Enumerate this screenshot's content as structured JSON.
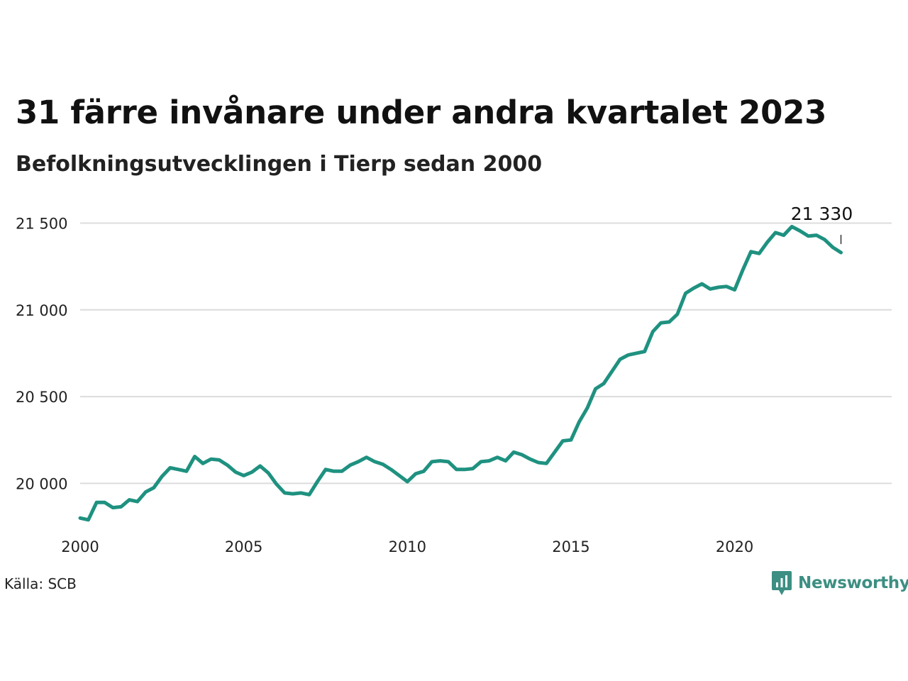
{
  "title": "31 färre invånare under andra kvartalet 2023",
  "subtitle": "Befolkningsutvecklingen i Tierp sedan 2000",
  "source": "Källa: SCB",
  "brand": {
    "name": "Newsworthy",
    "color": "#3c8f82"
  },
  "chart_data": {
    "type": "line",
    "color": "#1f9180",
    "gridlines": true,
    "ylim": [
      19740,
      21600
    ],
    "xlim": [
      2000,
      2024.8
    ],
    "yticks": [
      20000,
      20500,
      21000,
      21500
    ],
    "ytick_labels": [
      "20 000",
      "20 500",
      "21 000",
      "21 500"
    ],
    "xticks": [
      2000,
      2005,
      2010,
      2015,
      2020
    ],
    "xtick_labels": [
      "2000",
      "2005",
      "2010",
      "2015",
      "2020"
    ],
    "last_value_label": "21 330",
    "series": [
      {
        "x": [
          2000.0,
          2000.25,
          2000.5,
          2000.75,
          2001.0,
          2001.25,
          2001.5,
          2001.75,
          2002.0,
          2002.25,
          2002.5,
          2002.75,
          2003.0,
          2003.25,
          2003.5,
          2003.75,
          2004.0,
          2004.25,
          2004.5,
          2004.75,
          2005.0,
          2005.25,
          2005.5,
          2005.75,
          2006.0,
          2006.25,
          2006.5,
          2006.75,
          2007.0,
          2007.25,
          2007.5,
          2007.75,
          2008.0,
          2008.25,
          2008.5,
          2008.75,
          2009.0,
          2009.25,
          2009.5,
          2009.75,
          2010.0,
          2010.25,
          2010.5,
          2010.75,
          2011.0,
          2011.25,
          2011.5,
          2011.75,
          2012.0,
          2012.25,
          2012.5,
          2012.75,
          2013.0,
          2013.25,
          2013.5,
          2013.75,
          2014.0,
          2014.25,
          2014.5,
          2014.75,
          2015.0,
          2015.25,
          2015.5,
          2015.75,
          2016.0,
          2016.25,
          2016.5,
          2016.75,
          2017.0,
          2017.25,
          2017.5,
          2017.75,
          2018.0,
          2018.25,
          2018.5,
          2018.75,
          2019.0,
          2019.25,
          2019.5,
          2019.75,
          2020.0,
          2020.25,
          2020.5,
          2020.75,
          2021.0,
          2021.25,
          2021.5,
          2021.75,
          2022.0,
          2022.25,
          2022.5,
          2022.75,
          2023.0,
          2023.25
        ],
        "values": [
          19800,
          19790,
          19890,
          19890,
          19860,
          19865,
          19905,
          19895,
          19950,
          19975,
          20040,
          20090,
          20080,
          20070,
          20155,
          20115,
          20140,
          20135,
          20105,
          20065,
          20045,
          20065,
          20100,
          20060,
          19995,
          19945,
          19940,
          19945,
          19935,
          20010,
          20080,
          20070,
          20070,
          20105,
          20125,
          20150,
          20125,
          20110,
          20080,
          20045,
          20010,
          20055,
          20070,
          20125,
          20130,
          20125,
          20080,
          20080,
          20085,
          20125,
          20130,
          20150,
          20130,
          20180,
          20165,
          20140,
          20120,
          20115,
          20180,
          20245,
          20250,
          20355,
          20435,
          20545,
          20575,
          20645,
          20715,
          20740,
          20750,
          20760,
          20875,
          20925,
          20930,
          20975,
          21095,
          21125,
          21150,
          21120,
          21130,
          21135,
          21115,
          21230,
          21335,
          21325,
          21390,
          21445,
          21430,
          21480,
          21455,
          21425,
          21430,
          21405,
          21360,
          21330
        ]
      }
    ]
  }
}
